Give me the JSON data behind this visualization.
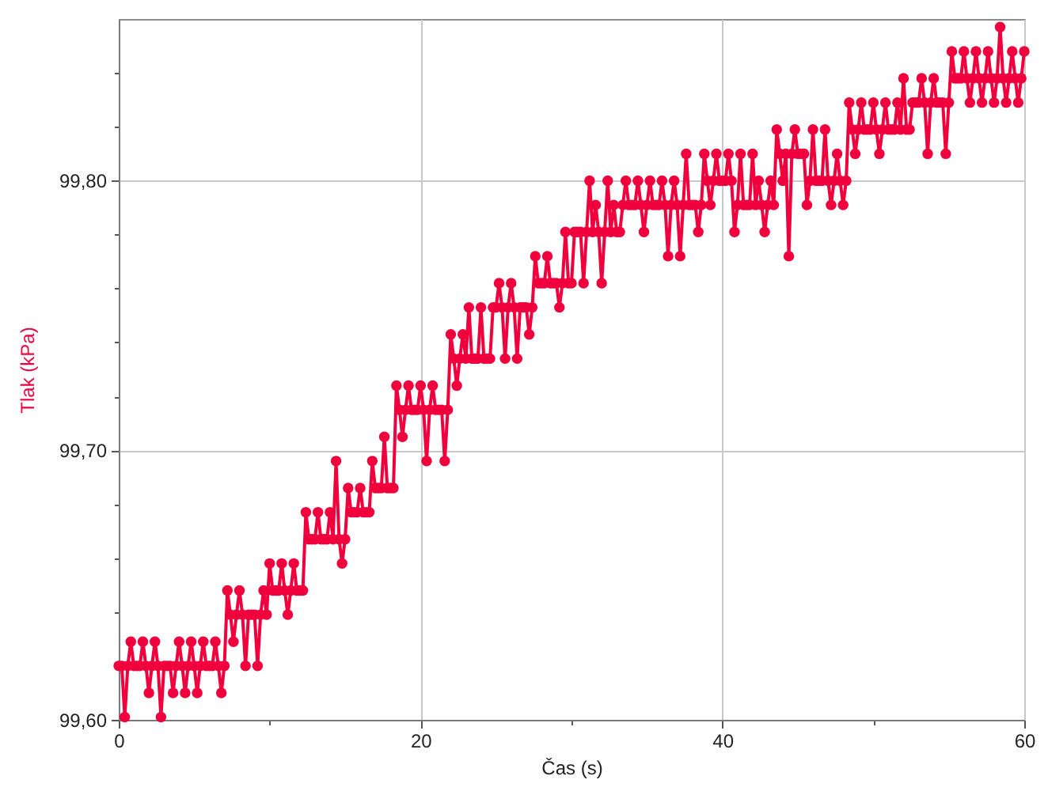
{
  "chart_data": {
    "type": "line",
    "xlabel": "Čas (s)",
    "ylabel": "Tlak (kPa)",
    "xlim": [
      0,
      60
    ],
    "xticks": [
      0,
      {
        "value": 10,
        "label": null
      },
      20,
      {
        "value": 30,
        "label": null
      },
      40,
      {
        "value": 50,
        "label": null
      },
      60
    ],
    "ylim": [
      99.6,
      99.86
    ],
    "yticks": [
      {
        "value": 99.6,
        "label": "99,60"
      },
      {
        "value": 99.62,
        "label": null
      },
      {
        "value": 99.64,
        "label": null
      },
      {
        "value": 99.66,
        "label": null
      },
      {
        "value": 99.68,
        "label": null
      },
      {
        "value": 99.7,
        "label": "99,70"
      },
      {
        "value": 99.72,
        "label": null
      },
      {
        "value": 99.74,
        "label": null
      },
      {
        "value": 99.76,
        "label": null
      },
      {
        "value": 99.78,
        "label": null
      },
      {
        "value": 99.8,
        "label": "99,80"
      },
      {
        "value": 99.82,
        "label": null
      },
      {
        "value": 99.84,
        "label": null
      }
    ],
    "grid": true,
    "marker": "circle",
    "line_style": "solid",
    "series": [
      {
        "color": "#f0003c",
        "x": [
          0,
          0.2,
          0.4,
          0.6,
          0.8,
          1,
          1.2,
          1.4,
          1.6,
          1.8,
          2,
          2.2,
          2.4,
          2.6,
          2.8,
          3,
          3.2,
          3.4,
          3.6,
          3.8,
          4,
          4.2,
          4.4,
          4.6,
          4.8,
          5,
          5.2,
          5.4,
          5.6,
          5.8,
          6,
          6.2,
          6.4,
          6.6,
          6.8,
          7,
          7.2,
          7.4,
          7.6,
          7.8,
          8,
          8.2,
          8.4,
          8.6,
          8.8,
          9,
          9.2,
          9.4,
          9.6,
          9.8,
          10,
          10.2,
          10.4,
          10.6,
          10.8,
          11,
          11.2,
          11.4,
          11.6,
          11.8,
          12,
          12.2,
          12.4,
          12.6,
          12.8,
          13,
          13.2,
          13.4,
          13.6,
          13.8,
          14,
          14.2,
          14.4,
          14.6,
          14.8,
          15,
          15.2,
          15.4,
          15.6,
          15.8,
          16,
          16.2,
          16.4,
          16.6,
          16.8,
          17,
          17.2,
          17.4,
          17.6,
          17.8,
          18,
          18.2,
          18.4,
          18.6,
          18.8,
          19,
          19.2,
          19.4,
          19.6,
          19.8,
          20,
          20.2,
          20.4,
          20.6,
          20.8,
          21,
          21.2,
          21.4,
          21.6,
          21.8,
          22,
          22.2,
          22.4,
          22.6,
          22.8,
          23,
          23.2,
          23.4,
          23.6,
          23.8,
          24,
          24.2,
          24.4,
          24.6,
          24.8,
          25,
          25.2,
          25.4,
          25.6,
          25.8,
          26,
          26.2,
          26.4,
          26.6,
          26.8,
          27,
          27.2,
          27.4,
          27.6,
          27.8,
          28,
          28.2,
          28.4,
          28.6,
          28.8,
          29,
          29.2,
          29.4,
          29.6,
          29.8,
          30,
          30.2,
          30.4,
          30.6,
          30.8,
          31,
          31.2,
          31.4,
          31.6,
          31.8,
          32,
          32.2,
          32.4,
          32.6,
          32.8,
          33,
          33.2,
          33.4,
          33.6,
          33.8,
          34,
          34.2,
          34.4,
          34.6,
          34.8,
          35,
          35.2,
          35.4,
          35.6,
          35.8,
          36,
          36.2,
          36.4,
          36.6,
          36.8,
          37,
          37.2,
          37.4,
          37.6,
          37.8,
          38,
          38.2,
          38.4,
          38.6,
          38.8,
          39,
          39.2,
          39.4,
          39.6,
          39.8,
          40,
          40.2,
          40.4,
          40.6,
          40.8,
          41,
          41.2,
          41.4,
          41.6,
          41.8,
          42,
          42.2,
          42.4,
          42.6,
          42.8,
          43,
          43.2,
          43.4,
          43.6,
          43.8,
          44,
          44.2,
          44.4,
          44.6,
          44.8,
          45,
          45.2,
          45.4,
          45.6,
          45.8,
          46,
          46.2,
          46.4,
          46.6,
          46.8,
          47,
          47.2,
          47.4,
          47.6,
          47.8,
          48,
          48.2,
          48.4,
          48.6,
          48.8,
          49,
          49.2,
          49.4,
          49.6,
          49.8,
          50,
          50.2,
          50.4,
          50.6,
          50.8,
          51,
          51.2,
          51.4,
          51.6,
          51.8,
          52,
          52.2,
          52.4,
          52.6,
          52.8,
          53,
          53.2,
          53.4,
          53.6,
          53.8,
          54,
          54.2,
          54.4,
          54.6,
          54.8,
          55,
          55.2,
          55.4,
          55.6,
          55.8,
          56,
          56.2,
          56.4,
          56.6,
          56.8,
          57,
          57.2,
          57.4,
          57.6,
          57.8,
          58,
          58.2,
          58.4,
          58.6,
          58.8,
          59,
          59.2,
          59.4,
          59.6,
          59.8,
          60
        ],
        "values": [
          99.62,
          99.62,
          99.601,
          99.62,
          99.629,
          99.62,
          99.62,
          99.62,
          99.629,
          99.62,
          99.61,
          99.62,
          99.629,
          99.62,
          99.601,
          99.62,
          99.62,
          99.62,
          99.61,
          99.62,
          99.629,
          99.62,
          99.61,
          99.62,
          99.629,
          99.62,
          99.61,
          99.62,
          99.629,
          99.62,
          99.62,
          99.62,
          99.629,
          99.62,
          99.61,
          99.62,
          99.648,
          99.639,
          99.629,
          99.639,
          99.648,
          99.639,
          99.62,
          99.639,
          99.639,
          99.639,
          99.62,
          99.639,
          99.648,
          99.639,
          99.658,
          99.648,
          99.648,
          99.648,
          99.658,
          99.648,
          99.639,
          99.648,
          99.658,
          99.648,
          99.648,
          99.648,
          99.677,
          99.667,
          99.667,
          99.667,
          99.677,
          99.667,
          99.667,
          99.667,
          99.677,
          99.667,
          99.696,
          99.667,
          99.658,
          99.667,
          99.686,
          99.677,
          99.677,
          99.677,
          99.686,
          99.677,
          99.677,
          99.677,
          99.696,
          99.686,
          99.686,
          99.686,
          99.705,
          99.686,
          99.686,
          99.686,
          99.724,
          99.715,
          99.705,
          99.715,
          99.724,
          99.715,
          99.715,
          99.715,
          99.724,
          99.715,
          99.696,
          99.715,
          99.724,
          99.715,
          99.715,
          99.715,
          99.696,
          99.715,
          99.743,
          99.734,
          99.724,
          99.734,
          99.743,
          99.734,
          99.753,
          99.734,
          99.734,
          99.734,
          99.753,
          99.734,
          99.734,
          99.734,
          99.753,
          99.753,
          99.762,
          99.753,
          99.734,
          99.753,
          99.762,
          99.753,
          99.734,
          99.753,
          99.753,
          99.753,
          99.743,
          99.753,
          99.772,
          99.762,
          99.762,
          99.762,
          99.772,
          99.762,
          99.762,
          99.762,
          99.753,
          99.762,
          99.781,
          99.762,
          99.762,
          99.781,
          99.781,
          99.781,
          99.762,
          99.781,
          99.8,
          99.781,
          99.791,
          99.781,
          99.762,
          99.781,
          99.8,
          99.781,
          99.791,
          99.781,
          99.781,
          99.791,
          99.8,
          99.791,
          99.791,
          99.791,
          99.8,
          99.791,
          99.781,
          99.791,
          99.8,
          99.791,
          99.791,
          99.791,
          99.8,
          99.791,
          99.772,
          99.791,
          99.8,
          99.791,
          99.772,
          99.791,
          99.81,
          99.791,
          99.791,
          99.791,
          99.781,
          99.791,
          99.81,
          99.8,
          99.791,
          99.8,
          99.81,
          99.8,
          99.8,
          99.8,
          99.81,
          99.8,
          99.781,
          99.791,
          99.81,
          99.791,
          99.791,
          99.791,
          99.81,
          99.791,
          99.8,
          99.791,
          99.781,
          99.791,
          99.8,
          99.791,
          99.819,
          99.81,
          99.8,
          99.81,
          99.772,
          99.81,
          99.819,
          99.81,
          99.81,
          99.81,
          99.791,
          99.8,
          99.819,
          99.8,
          99.8,
          99.8,
          99.819,
          99.8,
          99.791,
          99.8,
          99.81,
          99.8,
          99.791,
          99.8,
          99.829,
          99.819,
          99.81,
          99.819,
          99.829,
          99.819,
          99.819,
          99.819,
          99.829,
          99.819,
          99.81,
          99.819,
          99.829,
          99.819,
          99.819,
          99.819,
          99.829,
          99.819,
          99.838,
          99.819,
          99.819,
          99.829,
          99.829,
          99.829,
          99.838,
          99.829,
          99.81,
          99.829,
          99.838,
          99.829,
          99.829,
          99.829,
          99.81,
          99.829,
          99.848,
          99.838,
          99.838,
          99.838,
          99.848,
          99.838,
          99.829,
          99.838,
          99.848,
          99.838,
          99.829,
          99.838,
          99.848,
          99.838,
          99.829,
          99.838,
          99.857,
          99.838,
          99.829,
          99.838,
          99.848,
          99.838,
          99.829,
          99.838,
          99.848
        ]
      }
    ]
  }
}
